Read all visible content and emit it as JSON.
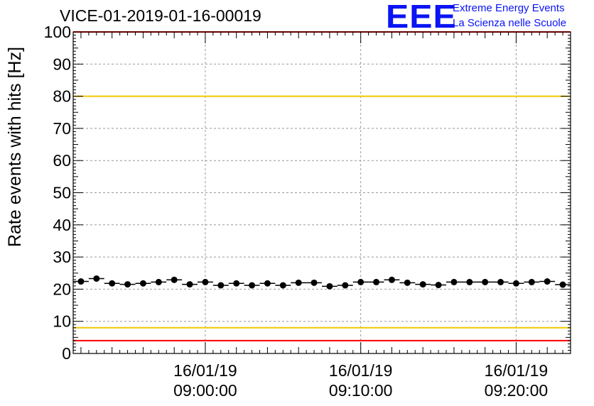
{
  "header": {
    "title": "VICE-01-2019-01-16-00019",
    "logo_letters": "EEE",
    "logo_line1": "Extreme Energy Events",
    "logo_line2": "La Scienza nelle Scuole"
  },
  "colors": {
    "data": "#000000",
    "red_limit": "#ff0000",
    "yellow_limit": "#f0c800",
    "grid": "#999999",
    "logo": "#0a14f5"
  },
  "chart_data": {
    "type": "scatter",
    "title": "VICE-01-2019-01-16-00019",
    "xlabel": "",
    "ylabel": "Rate events with hits [Hz]",
    "ylim": [
      0,
      100
    ],
    "yticks": [
      0,
      10,
      20,
      30,
      40,
      50,
      60,
      70,
      80,
      90,
      100
    ],
    "x_unit": "minutes",
    "xlim": [
      -8.5,
      23.5
    ],
    "xticks": [
      {
        "x": 0,
        "date": "16/01/19",
        "time": "09:00:00"
      },
      {
        "x": 10,
        "date": "16/01/19",
        "time": "09:10:00"
      },
      {
        "x": 20,
        "date": "16/01/19",
        "time": "09:20:00"
      }
    ],
    "grid": true,
    "series": [
      {
        "x": [
          -8,
          -7,
          -6,
          -5,
          -4,
          -3,
          -2,
          -1,
          0,
          1,
          2,
          3,
          4,
          5,
          6,
          7,
          8,
          9,
          10,
          11,
          12,
          13,
          14,
          15,
          16,
          17,
          18,
          19,
          20,
          21,
          22,
          23
        ],
        "y": [
          22.4,
          23.3,
          21.8,
          21.5,
          21.8,
          22.2,
          22.9,
          21.5,
          22.2,
          21.2,
          21.8,
          21.2,
          21.8,
          21.2,
          22.0,
          22.0,
          20.9,
          21.2,
          22.2,
          22.2,
          22.9,
          22.0,
          21.5,
          21.3,
          22.2,
          22.2,
          22.2,
          22.2,
          21.8,
          22.2,
          22.4,
          21.4
        ]
      }
    ],
    "reference_lines": [
      {
        "y": 100,
        "color": "red"
      },
      {
        "y": 80,
        "color": "yellow"
      },
      {
        "y": 8,
        "color": "yellow"
      },
      {
        "y": 4,
        "color": "red"
      }
    ]
  }
}
